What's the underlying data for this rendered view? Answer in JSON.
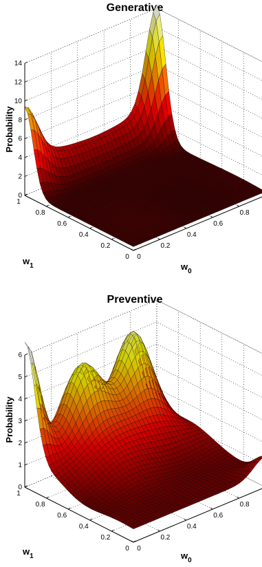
{
  "chart_data": [
    {
      "type": "surface",
      "title": "Generative",
      "zlabel": "Probability",
      "xlabel": "w",
      "xlabel_sub": "0",
      "ylabel": "w",
      "ylabel_sub": "1",
      "zlim": [
        0,
        14
      ],
      "zticks": [
        "0",
        "2",
        "4",
        "6",
        "8",
        "10",
        "12",
        "14"
      ],
      "w0_ticks": [
        "0",
        "0.2",
        "0.4",
        "0.6",
        "0.8",
        "1"
      ],
      "w1_ticks": [
        "0",
        "0.2",
        "0.4",
        "0.6",
        "0.8",
        "1"
      ],
      "colormap": "hot",
      "grid": true,
      "features": {
        "peak_at_w0_1_w1_1": 14,
        "ridge_at_w0_0_w1_1": 9,
        "wall_along_w1_1": 3.5,
        "floor_level": 0.4
      }
    },
    {
      "type": "surface",
      "title": "Preventive",
      "zlabel": "Probability",
      "xlabel": "w",
      "xlabel_sub": "0",
      "ylabel": "w",
      "ylabel_sub": "1",
      "zlim": [
        0,
        6
      ],
      "zticks": [
        "0",
        "1",
        "2",
        "3",
        "4",
        "5",
        "6"
      ],
      "w0_ticks": [
        "0",
        "0.2",
        "0.4",
        "0.6",
        "0.8",
        "1"
      ],
      "w1_ticks": [
        "0",
        "0.2",
        "0.4",
        "0.6",
        "0.8",
        "1"
      ],
      "colormap": "hot",
      "grid": true,
      "features": {
        "peak_at_w0_0_w1_1": 5.5,
        "bump_1_height": 4.3,
        "bump_2_height": 4.3,
        "corner_bump_w0_1_w1_0": 0.8,
        "floor_level": 0.6
      }
    }
  ]
}
